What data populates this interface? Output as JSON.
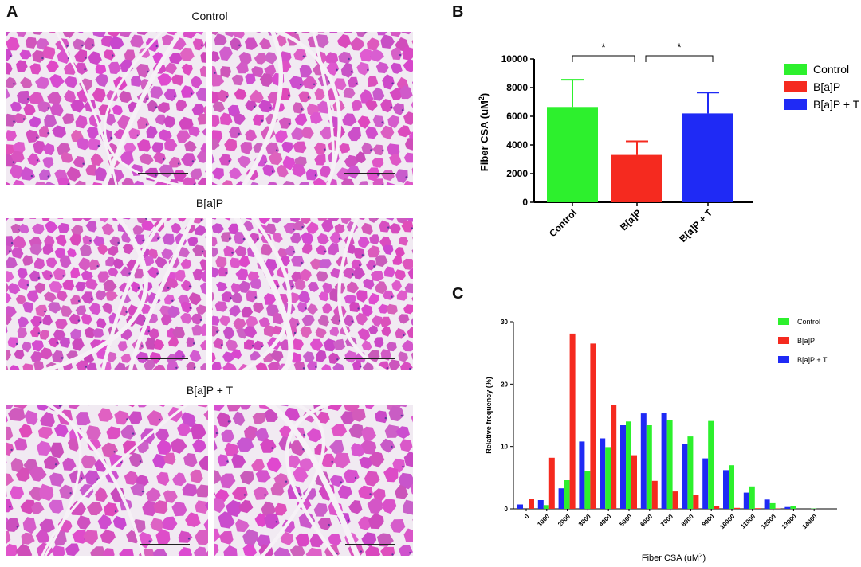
{
  "panelA": {
    "letter": "A",
    "rows": [
      {
        "label": "Control"
      },
      {
        "label": "B[a]P"
      },
      {
        "label": "B[a]P + T"
      }
    ]
  },
  "panelB": {
    "letter": "B",
    "sig_marker": "*"
  },
  "panelC": {
    "letter": "C"
  },
  "colors": {
    "control": "#2df02d",
    "bap": "#f52a1f",
    "bapt": "#1f2af5"
  },
  "chart_data": [
    {
      "type": "bar",
      "id": "B",
      "categories": [
        "Control",
        "B[a]P",
        "B[a]P + T"
      ],
      "values": [
        6650,
        3300,
        6200
      ],
      "error_upper": [
        8550,
        4250,
        7650
      ],
      "ylabel": "Fiber CSA (uM²)",
      "ylabel_main": "Fiber CSA (uM",
      "ylabel_sup": "2",
      "ylabel_close": ")",
      "ylim": [
        0,
        10000
      ],
      "yticks": [
        0,
        2000,
        4000,
        6000,
        8000,
        10000
      ],
      "legend": [
        "Control",
        "B[a]P",
        "B[a]P + T"
      ],
      "legend_position": "right",
      "significance": [
        {
          "from": "Control",
          "to": "B[a]P",
          "label": "*"
        },
        {
          "from": "B[a]P",
          "to": "B[a]P + T",
          "label": "*"
        }
      ]
    },
    {
      "type": "bar",
      "id": "C",
      "categories": [
        "0",
        "1000",
        "2000",
        "3000",
        "4000",
        "5000",
        "6000",
        "7000",
        "8000",
        "9000",
        "10000",
        "11000",
        "12000",
        "13000",
        "14000"
      ],
      "series": [
        {
          "name": "Control",
          "values": [
            0,
            0.6,
            4.6,
            6.1,
            9.9,
            14.0,
            13.4,
            14.3,
            11.6,
            14.1,
            7.0,
            3.6,
            0.9,
            0.4,
            0.05
          ]
        },
        {
          "name": "B[a]P",
          "values": [
            1.6,
            8.2,
            28.1,
            26.5,
            16.6,
            8.6,
            4.5,
            2.8,
            2.2,
            0.4,
            0.15,
            0.1,
            0.05,
            0,
            0
          ]
        },
        {
          "name": "B[a]P + T",
          "values": [
            0.7,
            1.4,
            3.3,
            10.8,
            11.3,
            13.4,
            15.3,
            15.4,
            10.4,
            8.1,
            6.2,
            2.6,
            1.5,
            0.3,
            0
          ]
        }
      ],
      "xlabel": "Fiber CSA (uM²)",
      "xlabel_main": "Fiber CSA (uM",
      "xlabel_sup": "2",
      "xlabel_close": ")",
      "ylabel": "Relative frequency (%)",
      "ylim": [
        0,
        30
      ],
      "yticks": [
        0,
        10,
        20,
        30
      ],
      "legend": [
        "Control",
        "B[a]P",
        "B[a]P + T"
      ],
      "legend_position": "top-right"
    }
  ]
}
